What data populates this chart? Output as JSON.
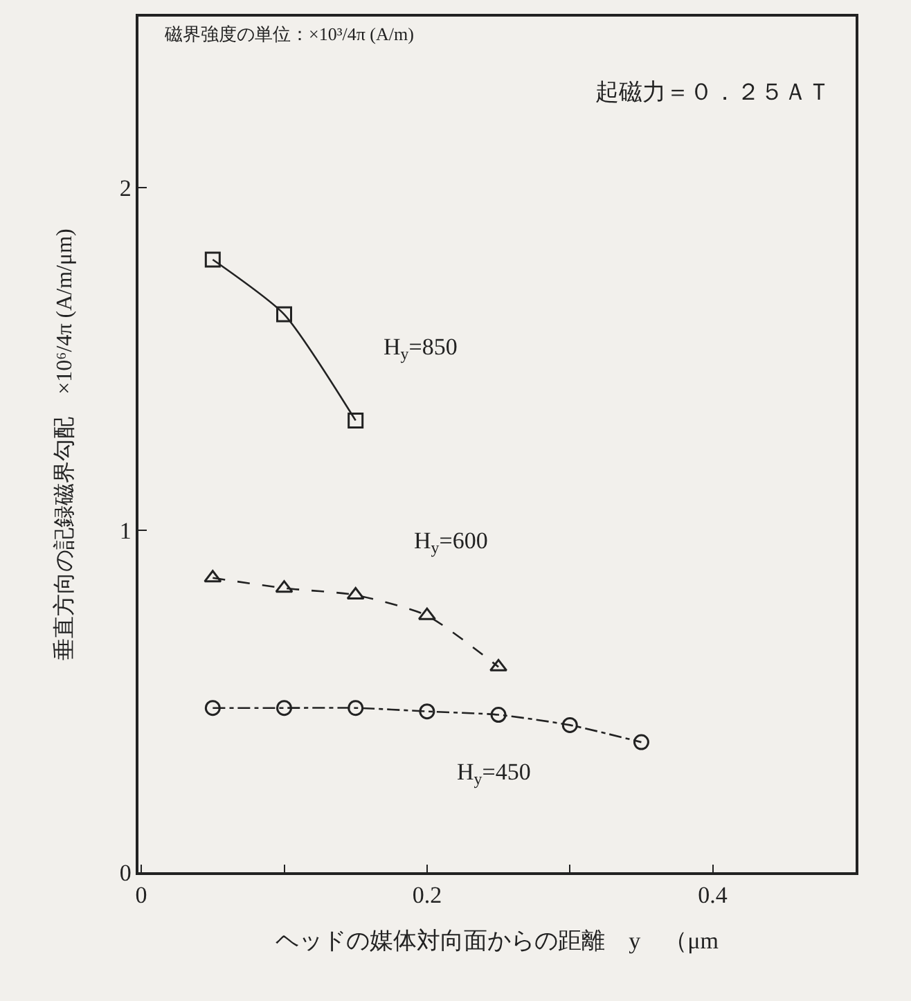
{
  "chart_data": {
    "type": "line",
    "xlabel": "ヘッドの媒体対向面からの距離　y　（μm",
    "ylabel": "垂直方向の記録磁界勾配　×10⁶/4π (A/m/μm)",
    "annotations": [
      "磁界強度の単位：×10³/4π (A/m)",
      "起磁力＝０．２５ＡＴ"
    ],
    "xlim": [
      -0.002,
      0.5
    ],
    "xticks": [
      0,
      {
        "value": 0.1,
        "label": null
      },
      0.2,
      {
        "value": 0.3,
        "label": null
      },
      0.4
    ],
    "ylim": [
      0,
      2.5
    ],
    "yticks": [
      0,
      1,
      2
    ],
    "grid": false,
    "legend": false,
    "series": [
      {
        "name": "H$_{y}$=850",
        "color": "#222222",
        "marker": "square",
        "line_style": "solid",
        "x": [
          0.05,
          0.1,
          0.15
        ],
        "values": [
          1.79,
          1.63,
          1.32
        ]
      },
      {
        "name": "H$_{y}$=600",
        "color": "#222222",
        "marker": "triangle",
        "line_style": "dashed",
        "x": [
          0.05,
          0.1,
          0.15,
          0.2,
          0.25
        ],
        "values": [
          0.86,
          0.83,
          0.81,
          0.75,
          0.6
        ]
      },
      {
        "name": "H$_{y}$=450",
        "color": "#222222",
        "marker": "circle",
        "line_style": "dashdot",
        "x": [
          0.05,
          0.1,
          0.15,
          0.2,
          0.25,
          0.3,
          0.35
        ],
        "values": [
          0.48,
          0.48,
          0.48,
          0.47,
          0.46,
          0.43,
          0.38
        ]
      }
    ]
  }
}
